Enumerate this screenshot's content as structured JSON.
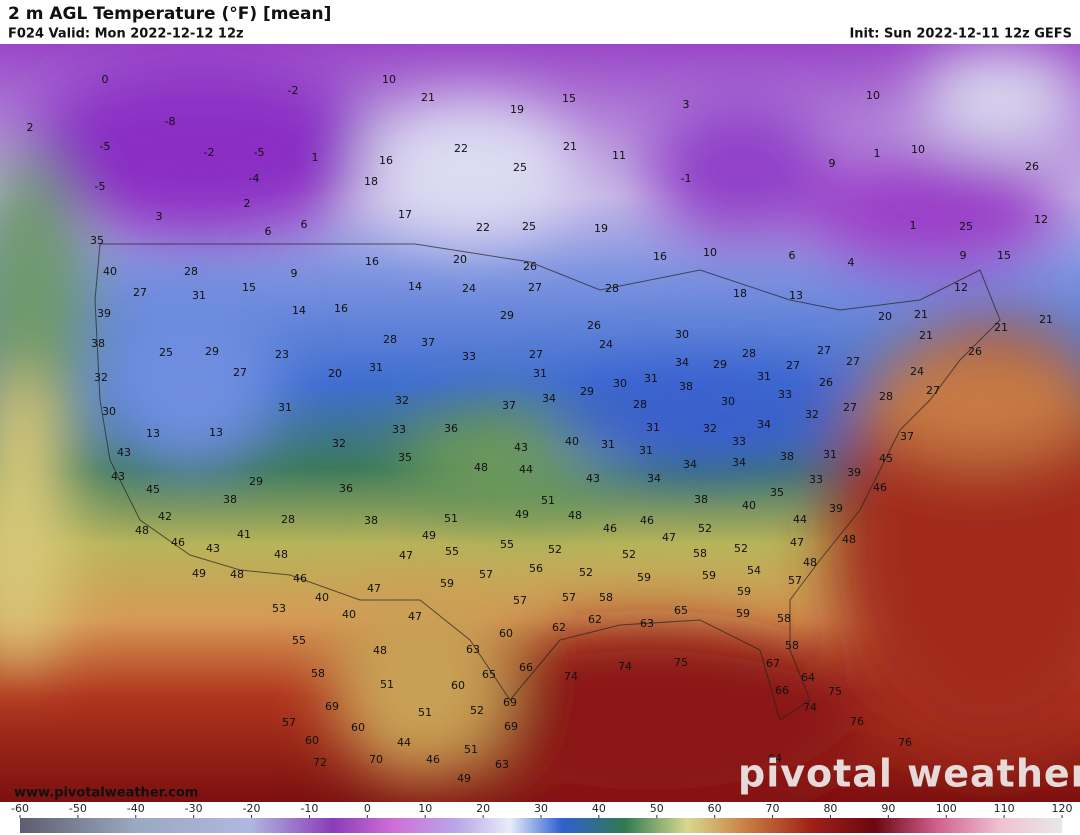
{
  "header": {
    "title": "2 m AGL Temperature (°F) [mean]",
    "valid": "F024 Valid: Mon 2022-12-12 12z",
    "init": "Init: Sun 2022-12-11 12z GEFS"
  },
  "map": {
    "labels": [
      0,
      -2,
      10,
      21,
      15,
      19,
      3,
      10,
      2,
      -8,
      -5,
      -2,
      -5,
      1,
      16,
      22,
      25,
      21,
      11,
      10,
      26,
      -5,
      -4,
      18,
      -1,
      9,
      1,
      2,
      17,
      3,
      6,
      6,
      22,
      25,
      19,
      12,
      1,
      25,
      35,
      16,
      10,
      6,
      4,
      9,
      15,
      20,
      16,
      26,
      9,
      28,
      40,
      15,
      14,
      24,
      27,
      28,
      18,
      13,
      12,
      27,
      31,
      16,
      14,
      29,
      20,
      21,
      21,
      21,
      39,
      26,
      24,
      30,
      28,
      37,
      38,
      25,
      29,
      23,
      33,
      27,
      28,
      29,
      34,
      27,
      27,
      27,
      21,
      26,
      32,
      27,
      20,
      31,
      31,
      31,
      38,
      30,
      29,
      31,
      26,
      24,
      27,
      33,
      28,
      30,
      31,
      32,
      37,
      34,
      28,
      30,
      32,
      27,
      13,
      13,
      33,
      36,
      40,
      31,
      31,
      32,
      34,
      33,
      37,
      43,
      32,
      43,
      31,
      34,
      34,
      38,
      31,
      39,
      35,
      48,
      44,
      43,
      34,
      33,
      45,
      43,
      45,
      29,
      36,
      38,
      40,
      35,
      46,
      38,
      51,
      48,
      39,
      42,
      28,
      38,
      51,
      49,
      46,
      46,
      52,
      44,
      41,
      49,
      47,
      48,
      46,
      43,
      48,
      55,
      55,
      52,
      52,
      58,
      52,
      47,
      48,
      47,
      56,
      52,
      59,
      59,
      54,
      48,
      49,
      48,
      46,
      57,
      59,
      57,
      47,
      40,
      57,
      57,
      58,
      59,
      53,
      40,
      47,
      62,
      62,
      65,
      59,
      58,
      63,
      60,
      55,
      48,
      63,
      58,
      74,
      75,
      74,
      58,
      65,
      66,
      67,
      51,
      60,
      64,
      66,
      75,
      69,
      69,
      74,
      51,
      52,
      57,
      60,
      69,
      76,
      60,
      44,
      51,
      76,
      46,
      70,
      72,
      63,
      64,
      49
    ]
  },
  "watermark": {
    "url": "www.pivotalweather.com",
    "brand": "pivotal weather"
  },
  "colorbar": {
    "ticks": [
      -60,
      -50,
      -40,
      -30,
      -20,
      -10,
      0,
      10,
      20,
      30,
      40,
      50,
      60,
      70,
      80,
      90,
      100,
      110,
      120
    ]
  }
}
